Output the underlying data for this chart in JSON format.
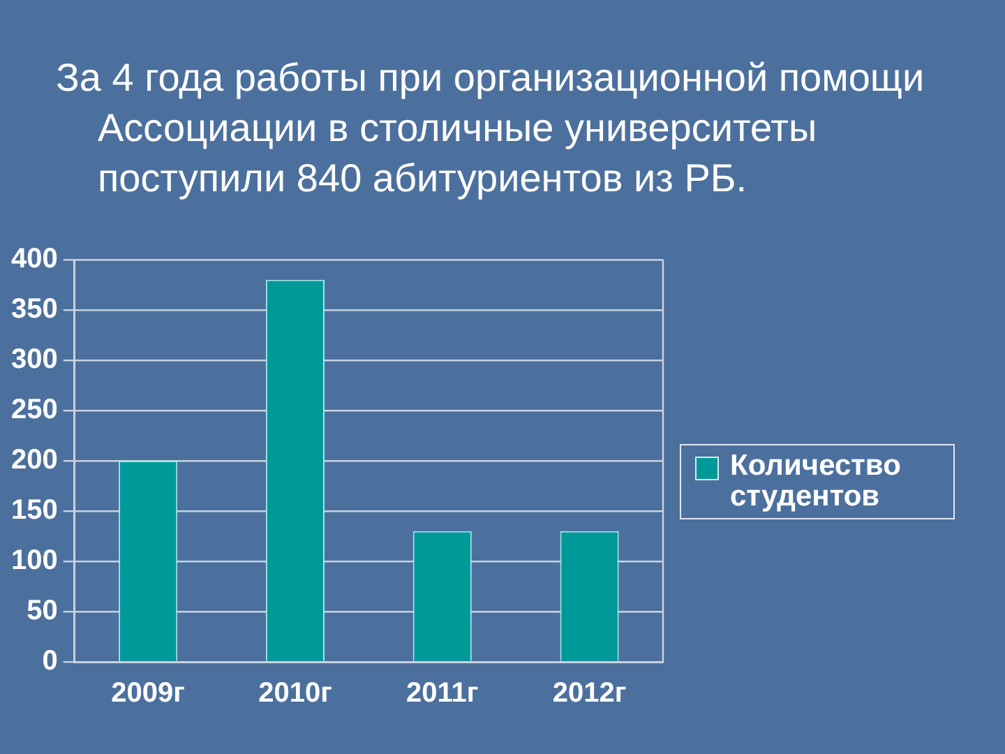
{
  "chart_data": {
    "type": "bar",
    "title": "За 4 года работы при организационной помощи Ассоциации в столичные университеты поступили 840 абитуриентов из РБ.",
    "categories": [
      "2009г",
      "2010г",
      "2011г",
      "2012г"
    ],
    "series": [
      {
        "name": "Количество студентов",
        "color": "#009999",
        "values": [
          200,
          380,
          130,
          130
        ]
      }
    ],
    "ylim": [
      0,
      400
    ],
    "yticks": [
      0,
      50,
      100,
      150,
      200,
      250,
      300,
      350,
      400
    ],
    "grid": "y",
    "legend": "right"
  }
}
